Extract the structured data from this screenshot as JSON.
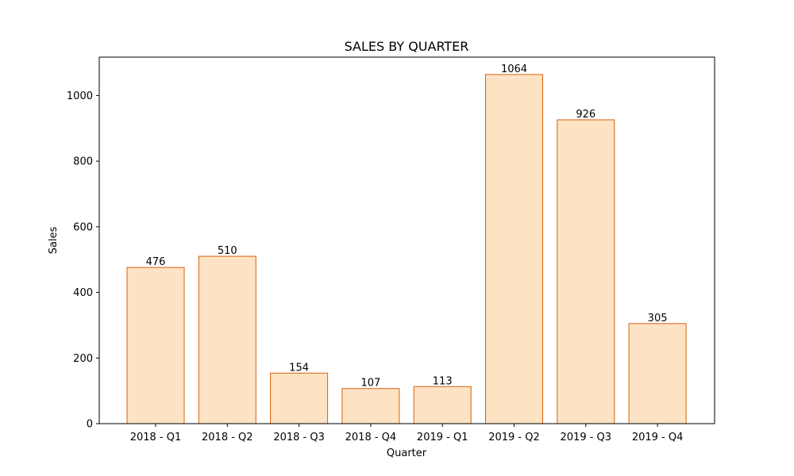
{
  "chart_data": {
    "type": "bar",
    "title": "SALES BY QUARTER",
    "xlabel": "Quarter",
    "ylabel": "Sales",
    "categories": [
      "2018 - Q1",
      "2018 - Q2",
      "2018 - Q3",
      "2018 - Q4",
      "2019 - Q1",
      "2019 - Q2",
      "2019 - Q3",
      "2019 - Q4"
    ],
    "values": [
      476,
      510,
      154,
      107,
      113,
      1064,
      926,
      305
    ],
    "ylim": [
      0,
      1117
    ],
    "yticks": [
      0,
      200,
      400,
      600,
      800,
      1000
    ],
    "grid": false,
    "bar_fill": "#fde3c3",
    "bar_edge": "#d95f0e"
  }
}
